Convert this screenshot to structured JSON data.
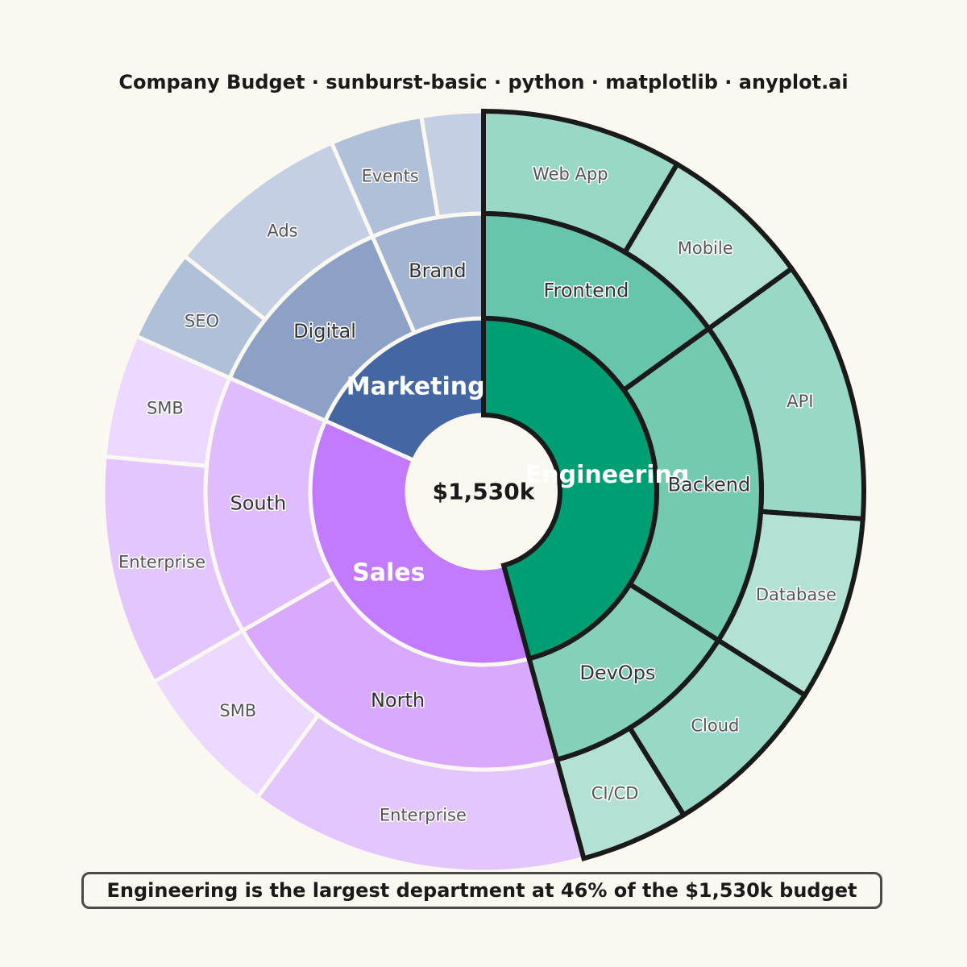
{
  "chart_data": {
    "type": "sunburst",
    "title": "Company Budget · sunburst-basic · python · matplotlib · anyplot.ai",
    "center_label": "$1,530k",
    "callout": "Engineering is the largest department at 46% of the $1,530k budget",
    "highlight": "Engineering",
    "hierarchy": [
      {
        "name": "Engineering",
        "value": 700,
        "color": "#009E73",
        "children": [
          {
            "name": "Frontend",
            "value": 230,
            "color": "#66C5AA",
            "children": [
              {
                "name": "Web App",
                "value": 130,
                "color": "#99D8C7"
              },
              {
                "name": "Mobile",
                "value": 100,
                "color": "#B3E2D5"
              }
            ]
          },
          {
            "name": "Backend",
            "value": 290,
            "color": "#73CAB1",
            "children": [
              {
                "name": "API",
                "value": 170,
                "color": "#99D8C7"
              },
              {
                "name": "Database",
                "value": 120,
                "color": "#B3E2D5"
              }
            ]
          },
          {
            "name": "DevOps",
            "value": 180,
            "color": "#85D0BB",
            "children": [
              {
                "name": "Cloud",
                "value": 110,
                "color": "#99D8C7"
              },
              {
                "name": "CI/CD",
                "value": 70,
                "color": "#B3E2D5"
              }
            ]
          }
        ]
      },
      {
        "name": "Sales",
        "value": 550,
        "color": "#C27AFF",
        "children": [
          {
            "name": "North",
            "value": 320,
            "color": "#D9A8FF",
            "children": [
              {
                "name": "Enterprise",
                "value": 220,
                "color": "#E4C6FF"
              },
              {
                "name": "SMB",
                "value": 100,
                "color": "#EDD8FF"
              }
            ]
          },
          {
            "name": "South",
            "value": 230,
            "color": "#E0BCFF",
            "children": [
              {
                "name": "Enterprise",
                "value": 150,
                "color": "#E4C6FF"
              },
              {
                "name": "SMB",
                "value": 80,
                "color": "#EDD8FF"
              }
            ]
          }
        ]
      },
      {
        "name": "Marketing",
        "value": 280,
        "color": "#4467A3",
        "children": [
          {
            "name": "Digital",
            "value": 180,
            "color": "#8DA1C7",
            "children": [
              {
                "name": "SEO",
                "value": 60,
                "color": "#B0C0D8"
              },
              {
                "name": "Ads",
                "value": 120,
                "color": "#C5CFE3"
              }
            ]
          },
          {
            "name": "Brand",
            "value": 100,
            "color": "#A3B3D2",
            "children": [
              {
                "name": "Events",
                "value": 60,
                "color": "#B0C0D8"
              },
              {
                "name": "",
                "value": 40,
                "color": "#C5CFE3"
              }
            ]
          }
        ]
      }
    ]
  }
}
